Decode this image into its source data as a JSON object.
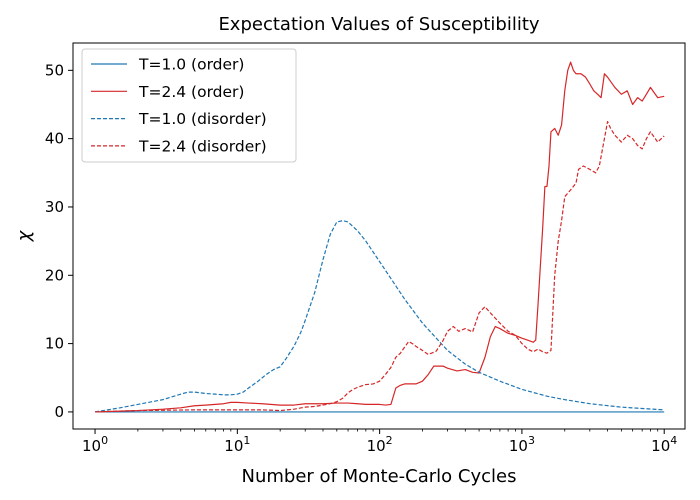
{
  "chart_data": {
    "type": "line",
    "title": "Expectation Values of Susceptibility",
    "xlabel": "Number of Monte-Carlo Cycles",
    "ylabel": "χ",
    "xscale": "log",
    "xlim": [
      0.7,
      14000
    ],
    "ylim": [
      -2.5,
      54
    ],
    "xticks": [
      {
        "value": 1,
        "base": "10",
        "exp": "0"
      },
      {
        "value": 10,
        "base": "10",
        "exp": "1"
      },
      {
        "value": 100,
        "base": "10",
        "exp": "2"
      },
      {
        "value": 1000,
        "base": "10",
        "exp": "3"
      },
      {
        "value": 10000,
        "base": "10",
        "exp": "4"
      }
    ],
    "yticks": [
      0,
      10,
      20,
      30,
      40,
      50
    ],
    "grid": false,
    "legend_position": "top-left",
    "series": [
      {
        "name": "T=1.0 (order)",
        "color": "#1f77b4",
        "dash": "solid",
        "points": [
          [
            1,
            0.0
          ],
          [
            10,
            0.0
          ],
          [
            100,
            0.0
          ],
          [
            1000,
            0.0
          ],
          [
            10000,
            0.0
          ]
        ]
      },
      {
        "name": "T=2.4 (order)",
        "color": "#d62728",
        "dash": "solid",
        "points": [
          [
            1,
            0.0
          ],
          [
            2,
            0.2
          ],
          [
            3,
            0.4
          ],
          [
            4,
            0.6
          ],
          [
            5,
            0.9
          ],
          [
            6,
            1.0
          ],
          [
            8,
            1.2
          ],
          [
            9,
            1.4
          ],
          [
            10,
            1.4
          ],
          [
            12,
            1.3
          ],
          [
            15,
            1.2
          ],
          [
            20,
            1.0
          ],
          [
            25,
            1.0
          ],
          [
            30,
            1.2
          ],
          [
            40,
            1.2
          ],
          [
            50,
            1.3
          ],
          [
            60,
            1.3
          ],
          [
            70,
            1.2
          ],
          [
            80,
            1.1
          ],
          [
            90,
            1.1
          ],
          [
            100,
            1.1
          ],
          [
            110,
            1.0
          ],
          [
            120,
            1.1
          ],
          [
            130,
            3.5
          ],
          [
            140,
            3.9
          ],
          [
            150,
            4.1
          ],
          [
            180,
            4.1
          ],
          [
            200,
            4.5
          ],
          [
            220,
            5.5
          ],
          [
            240,
            6.7
          ],
          [
            280,
            6.7
          ],
          [
            300,
            6.4
          ],
          [
            350,
            6.0
          ],
          [
            400,
            6.2
          ],
          [
            450,
            5.8
          ],
          [
            500,
            5.7
          ],
          [
            550,
            8.0
          ],
          [
            600,
            11.0
          ],
          [
            650,
            12.5
          ],
          [
            700,
            12.2
          ],
          [
            800,
            11.5
          ],
          [
            900,
            11.2
          ],
          [
            1000,
            10.8
          ],
          [
            1100,
            10.5
          ],
          [
            1200,
            10.2
          ],
          [
            1250,
            10.5
          ],
          [
            1300,
            16.0
          ],
          [
            1400,
            27.0
          ],
          [
            1450,
            33.0
          ],
          [
            1500,
            33.0
          ],
          [
            1550,
            36.0
          ],
          [
            1600,
            41.0
          ],
          [
            1700,
            41.5
          ],
          [
            1800,
            40.5
          ],
          [
            1900,
            42.0
          ],
          [
            2000,
            47.0
          ],
          [
            2100,
            50.0
          ],
          [
            2200,
            51.2
          ],
          [
            2300,
            50.0
          ],
          [
            2400,
            49.5
          ],
          [
            2600,
            49.5
          ],
          [
            2800,
            49.0
          ],
          [
            3000,
            48.0
          ],
          [
            3200,
            47.0
          ],
          [
            3400,
            46.5
          ],
          [
            3600,
            46.0
          ],
          [
            3800,
            49.5
          ],
          [
            4000,
            49.0
          ],
          [
            4500,
            47.5
          ],
          [
            5000,
            46.5
          ],
          [
            5500,
            47.0
          ],
          [
            6000,
            45.0
          ],
          [
            6500,
            46.0
          ],
          [
            7000,
            45.5
          ],
          [
            7500,
            46.5
          ],
          [
            8000,
            47.5
          ],
          [
            9000,
            46.0
          ],
          [
            10000,
            46.2
          ]
        ]
      },
      {
        "name": "T=1.0 (disorder)",
        "color": "#1f77b4",
        "dash": "dashed",
        "points": [
          [
            1,
            0.0
          ],
          [
            1.5,
            0.6
          ],
          [
            2,
            1.1
          ],
          [
            3,
            1.8
          ],
          [
            4,
            2.6
          ],
          [
            4.5,
            2.9
          ],
          [
            5,
            2.9
          ],
          [
            6,
            2.7
          ],
          [
            7,
            2.6
          ],
          [
            8,
            2.5
          ],
          [
            9,
            2.5
          ],
          [
            10,
            2.6
          ],
          [
            11,
            2.9
          ],
          [
            12,
            3.5
          ],
          [
            14,
            4.5
          ],
          [
            16,
            5.5
          ],
          [
            18,
            6.2
          ],
          [
            20,
            6.6
          ],
          [
            22,
            7.8
          ],
          [
            25,
            9.6
          ],
          [
            28,
            11.7
          ],
          [
            30,
            13.4
          ],
          [
            35,
            17.5
          ],
          [
            40,
            22.3
          ],
          [
            45,
            26.0
          ],
          [
            50,
            27.8
          ],
          [
            55,
            28.0
          ],
          [
            60,
            27.8
          ],
          [
            70,
            26.5
          ],
          [
            80,
            25.0
          ],
          [
            100,
            22.0
          ],
          [
            150,
            16.5
          ],
          [
            200,
            13.0
          ],
          [
            300,
            9.0
          ],
          [
            400,
            7.0
          ],
          [
            500,
            5.8
          ],
          [
            700,
            4.5
          ],
          [
            1000,
            3.3
          ],
          [
            1500,
            2.3
          ],
          [
            2000,
            1.8
          ],
          [
            3000,
            1.2
          ],
          [
            5000,
            0.7
          ],
          [
            7000,
            0.5
          ],
          [
            10000,
            0.3
          ]
        ]
      },
      {
        "name": "T=2.4 (disorder)",
        "color": "#d62728",
        "dash": "dashed",
        "points": [
          [
            1,
            0.0
          ],
          [
            2,
            0.2
          ],
          [
            5,
            0.3
          ],
          [
            10,
            0.3
          ],
          [
            15,
            0.3
          ],
          [
            20,
            0.2
          ],
          [
            25,
            0.4
          ],
          [
            30,
            0.7
          ],
          [
            35,
            0.8
          ],
          [
            40,
            1.0
          ],
          [
            45,
            1.2
          ],
          [
            50,
            1.5
          ],
          [
            55,
            2.0
          ],
          [
            60,
            2.8
          ],
          [
            65,
            3.3
          ],
          [
            70,
            3.6
          ],
          [
            80,
            4.0
          ],
          [
            90,
            4.1
          ],
          [
            100,
            4.5
          ],
          [
            110,
            5.5
          ],
          [
            120,
            6.5
          ],
          [
            130,
            8.0
          ],
          [
            140,
            8.6
          ],
          [
            150,
            9.5
          ],
          [
            160,
            10.3
          ],
          [
            170,
            10.0
          ],
          [
            180,
            9.6
          ],
          [
            200,
            9.0
          ],
          [
            220,
            8.4
          ],
          [
            250,
            8.9
          ],
          [
            280,
            10.5
          ],
          [
            300,
            11.8
          ],
          [
            330,
            12.5
          ],
          [
            360,
            11.8
          ],
          [
            400,
            12.2
          ],
          [
            450,
            11.7
          ],
          [
            500,
            14.5
          ],
          [
            550,
            15.4
          ],
          [
            600,
            14.5
          ],
          [
            700,
            13.0
          ],
          [
            800,
            11.8
          ],
          [
            900,
            11.2
          ],
          [
            1000,
            10.0
          ],
          [
            1100,
            9.2
          ],
          [
            1200,
            8.8
          ],
          [
            1300,
            9.2
          ],
          [
            1400,
            8.8
          ],
          [
            1500,
            8.6
          ],
          [
            1600,
            9.0
          ],
          [
            1700,
            20.0
          ],
          [
            1800,
            25.0
          ],
          [
            1900,
            28.0
          ],
          [
            2000,
            31.5
          ],
          [
            2200,
            32.5
          ],
          [
            2400,
            33.5
          ],
          [
            2500,
            35.5
          ],
          [
            2700,
            36.0
          ],
          [
            3000,
            35.5
          ],
          [
            3300,
            35.0
          ],
          [
            3500,
            36.0
          ],
          [
            3800,
            40.0
          ],
          [
            4000,
            42.5
          ],
          [
            4200,
            41.5
          ],
          [
            4500,
            40.5
          ],
          [
            5000,
            39.5
          ],
          [
            5500,
            40.5
          ],
          [
            6000,
            40.0
          ],
          [
            6500,
            39.0
          ],
          [
            7000,
            38.5
          ],
          [
            7500,
            40.0
          ],
          [
            8000,
            41.0
          ],
          [
            9000,
            39.5
          ],
          [
            10000,
            40.4
          ]
        ]
      }
    ]
  }
}
